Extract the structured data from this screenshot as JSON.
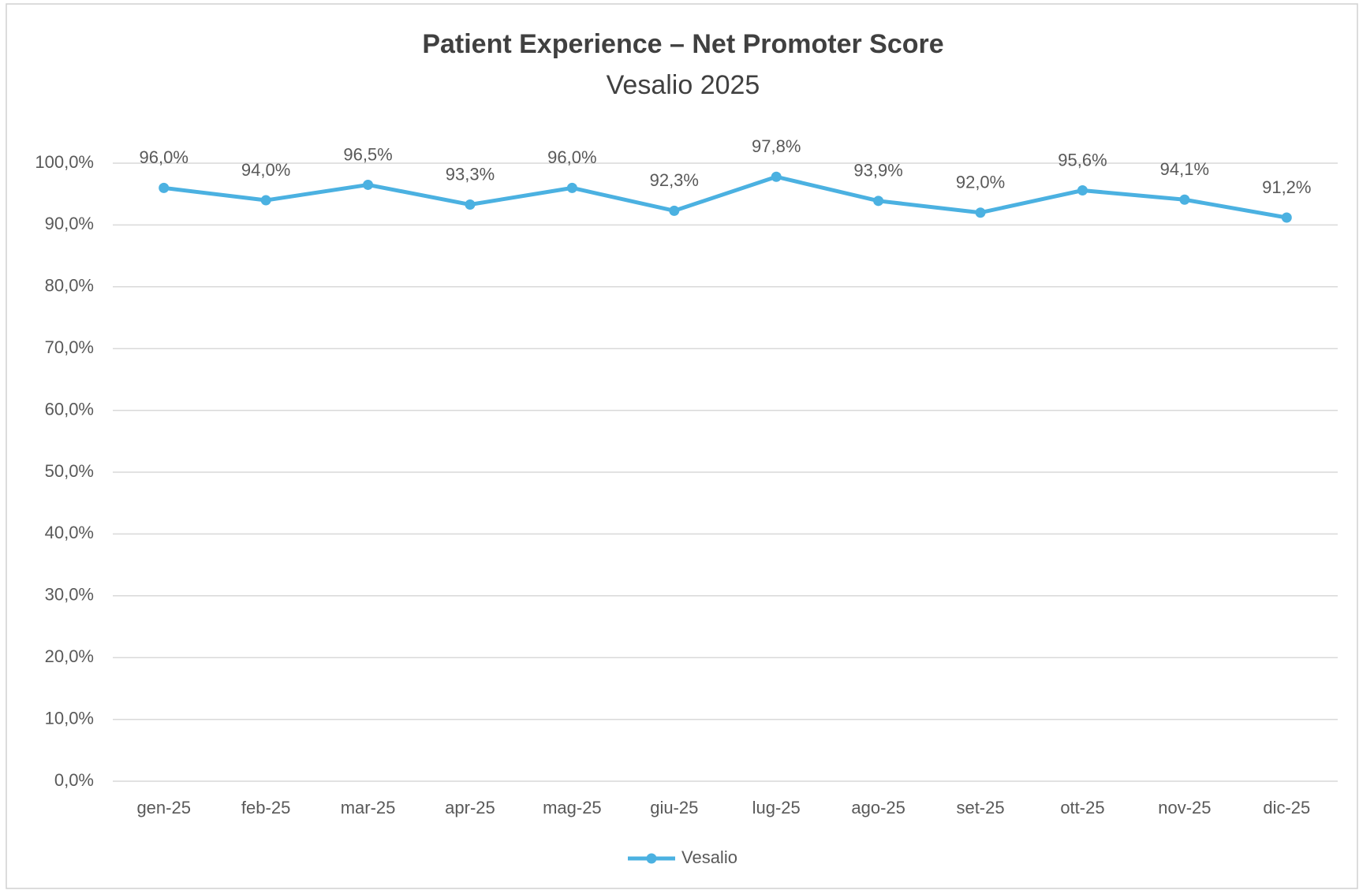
{
  "chart_data": {
    "type": "line",
    "title": "Patient Experience – Net Promoter Score",
    "subtitle": "Vesalio 2025",
    "categories": [
      "gen-25",
      "feb-25",
      "mar-25",
      "apr-25",
      "mag-25",
      "giu-25",
      "lug-25",
      "ago-25",
      "set-25",
      "ott-25",
      "nov-25",
      "dic-25"
    ],
    "series": [
      {
        "name": "Vesalio",
        "color": "#4bb1e1",
        "values": [
          96.0,
          94.0,
          96.5,
          93.3,
          96.0,
          92.3,
          97.8,
          93.9,
          92.0,
          95.6,
          94.1,
          91.2
        ],
        "value_labels": [
          "96,0%",
          "94,0%",
          "96,5%",
          "93,3%",
          "96,0%",
          "92,3%",
          "97,8%",
          "93,9%",
          "92,0%",
          "95,6%",
          "94,1%",
          "91,2%"
        ]
      }
    ],
    "ylim": [
      0,
      100
    ],
    "yticks": [
      {
        "value": 0,
        "label": "0,0%"
      },
      {
        "value": 10,
        "label": "10,0%"
      },
      {
        "value": 20,
        "label": "20,0%"
      },
      {
        "value": 30,
        "label": "30,0%"
      },
      {
        "value": 40,
        "label": "40,0%"
      },
      {
        "value": 50,
        "label": "50,0%"
      },
      {
        "value": 60,
        "label": "60,0%"
      },
      {
        "value": 70,
        "label": "70,0%"
      },
      {
        "value": 80,
        "label": "80,0%"
      },
      {
        "value": 90,
        "label": "90,0%"
      },
      {
        "value": 100,
        "label": "100,0%"
      }
    ],
    "grid": true,
    "legend": "bottom"
  }
}
